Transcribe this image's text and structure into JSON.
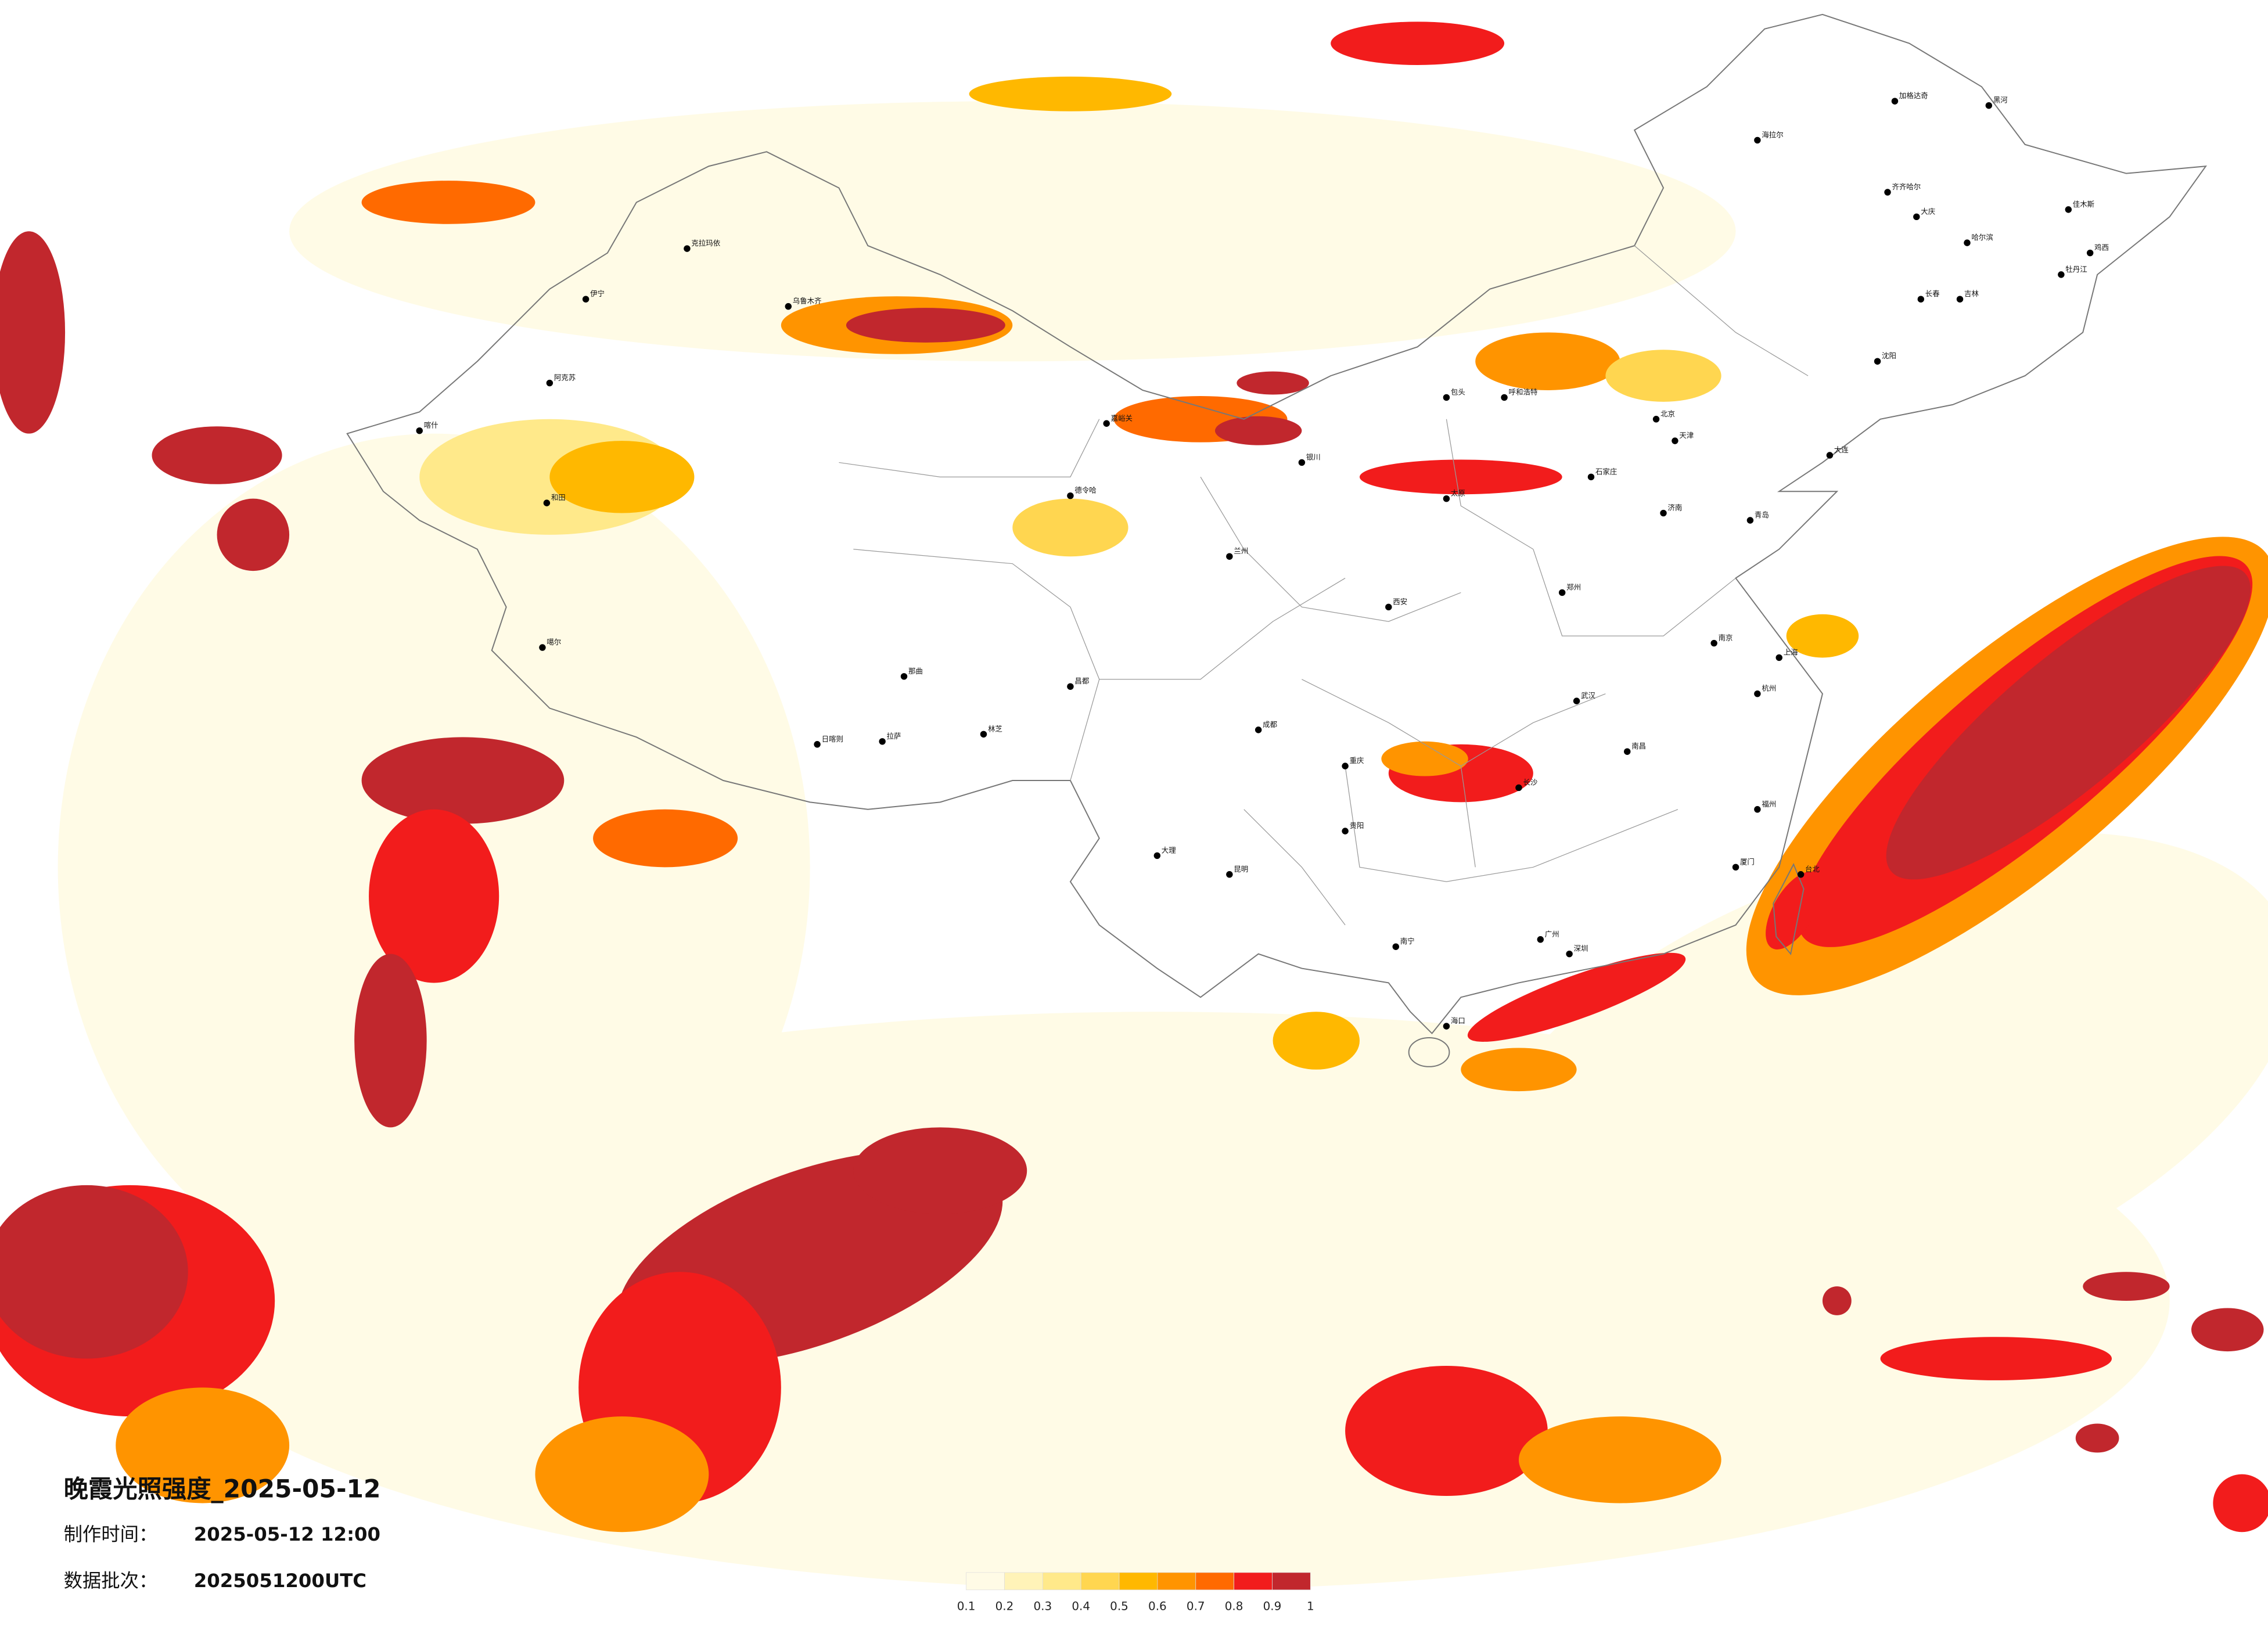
{
  "title": "晚霞光照强度_2025-05-12",
  "production_time": {
    "label": "制作时间：",
    "value": "2025-05-12 12:00"
  },
  "data_batch": {
    "label": "数据批次：",
    "value": "2025051200UTC"
  },
  "legend": {
    "colors": [
      "#fffbe6",
      "#fff3b8",
      "#ffe98a",
      "#ffd650",
      "#ffb800",
      "#ff9400",
      "#ff6a00",
      "#f21c1c",
      "#c1272d"
    ],
    "ticks": [
      0.1,
      0.2,
      0.3,
      0.4,
      0.5,
      0.6,
      0.7,
      0.8,
      0.9,
      1
    ]
  },
  "cities": [
    "加格达奇",
    "黑河",
    "海拉尔",
    "齐齐哈尔",
    "大庆",
    "哈尔滨",
    "佳木斯",
    "鸡西",
    "牡丹江",
    "长春",
    "吉林",
    "沈阳",
    "大连",
    "北京",
    "天津",
    "石家庄",
    "太原",
    "济南",
    "青岛",
    "郑州",
    "西安",
    "兰州",
    "银川",
    "呼和浩特",
    "包头",
    "克拉玛依",
    "乌鲁木齐",
    "伊宁",
    "阿克苏",
    "喀什",
    "和田",
    "嘉峪关",
    "德令哈",
    "拉萨",
    "日喀则",
    "林芝",
    "那曲",
    "噶尔",
    "昌都",
    "成都",
    "重庆",
    "贵阳",
    "昆明",
    "大理",
    "南宁",
    "广州",
    "深圳",
    "海口",
    "武汉",
    "长沙",
    "南昌",
    "南京",
    "上海",
    "杭州",
    "福州",
    "厦门",
    "台北"
  ]
}
